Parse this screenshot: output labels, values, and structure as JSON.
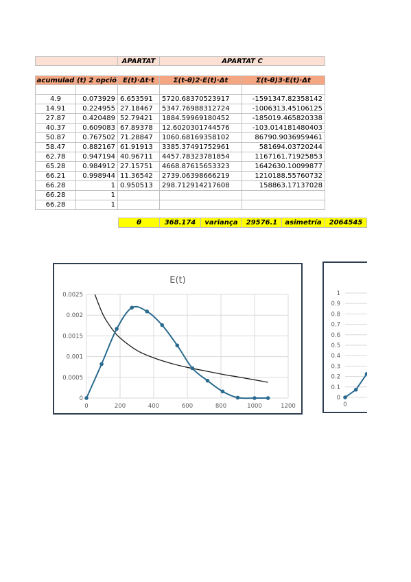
{
  "top_header": {
    "apartat_b": "APARTAT",
    "apartat_c": "APARTAT C"
  },
  "col_headers": [
    "acumulad",
    "(t) 2 opció",
    "E(t)·Δt·t",
    "Σ(t-θ)2·E(t)·Δt",
    "Σ(t-θ)3·E(t)·Δt"
  ],
  "rows": [
    [
      "",
      "",
      "",
      "",
      ""
    ],
    [
      "4.9",
      "0.073929",
      "6.653591",
      "5720.68370523917",
      "-1591347.82358142"
    ],
    [
      "14.91",
      "0.224955",
      "27.18467",
      "5347.76988312724",
      "-1006313.45106125"
    ],
    [
      "27.87",
      "0.420489",
      "52.79421",
      "1884.59969180452",
      "-185019.465820338"
    ],
    [
      "40.37",
      "0.609083",
      "67.89378",
      "12.6020301744576",
      "-103.014181480403"
    ],
    [
      "50.87",
      "0.767502",
      "71.28847",
      "1060.68169358102",
      "86790.9036959461"
    ],
    [
      "58.47",
      "0.882167",
      "61.91913",
      "3385.37491752961",
      "581694.03720244"
    ],
    [
      "62.78",
      "0.947194",
      "40.96711",
      "4457.78323781854",
      "1167161.71925853"
    ],
    [
      "65.28",
      "0.984912",
      "27.15751",
      "4668.87615653323",
      "1642630.10099877"
    ],
    [
      "66.21",
      "0.998944",
      "11.36542",
      "2739.06398666219",
      "1210188.55760732"
    ],
    [
      "66.28",
      "1",
      "0.950513",
      "298.712914217608",
      "158863.17137028"
    ],
    [
      "66.28",
      "1",
      "",
      "",
      ""
    ],
    [
      "66.28",
      "1",
      "",
      "",
      ""
    ]
  ],
  "summary": {
    "theta_label": "θ",
    "theta_value": "368.174",
    "variance_label": "variança",
    "variance_value": "29576.1",
    "skew_label": "asimetría",
    "skew_value": "2064545"
  },
  "colors": {
    "peach": "#fbe0d3",
    "orange": "#f4a582",
    "yellow": "#ffff00",
    "series": "#2a6a8f",
    "curve": "#1a1a1a"
  },
  "chart_data": [
    {
      "type": "line",
      "title": "E(t)",
      "xlim": [
        0,
        1200
      ],
      "ylim": [
        0,
        0.0025
      ],
      "x_ticks": [
        "0",
        "200",
        "400",
        "600",
        "800",
        "1000",
        "1200"
      ],
      "y_ticks": [
        "0",
        "0.0005",
        "0.001",
        "0.0015",
        "0.002",
        "0.0025"
      ],
      "grid": true,
      "series": [
        {
          "points": [
            [
              0,
              0
            ],
            [
              90,
              0.00082
            ],
            [
              180,
              0.00167
            ],
            [
              270,
              0.00218
            ],
            [
              360,
              0.00209
            ],
            [
              450,
              0.00176
            ],
            [
              540,
              0.00127
            ],
            [
              630,
              0.00072
            ],
            [
              720,
              0.00042
            ],
            [
              810,
              0.00016
            ],
            [
              900,
              1e-05
            ],
            [
              1000,
              0
            ],
            [
              1080,
              0
            ]
          ]
        },
        {
          "points": [
            [
              50,
              0.0025
            ],
            [
              100,
              0.002
            ],
            [
              150,
              0.00168
            ],
            [
              200,
              0.00145
            ],
            [
              300,
              0.00115
            ],
            [
              400,
              0.00097
            ],
            [
              500,
              0.00084
            ],
            [
              600,
              0.00074
            ],
            [
              700,
              0.00066
            ],
            [
              800,
              0.00058
            ],
            [
              900,
              0.00051
            ],
            [
              1000,
              0.00044
            ],
            [
              1080,
              0.00038
            ]
          ]
        }
      ]
    },
    {
      "type": "line",
      "y_ticks": [
        "0",
        "0.1",
        "0.2",
        "0.3",
        "0.4",
        "0.5",
        "0.6",
        "0.7",
        "0.8",
        "0.9",
        "1"
      ],
      "x_ticks": [
        "0"
      ],
      "ylim": [
        0,
        1
      ],
      "series": [
        {
          "points": [
            [
              0,
              0.0
            ],
            [
              90,
              0.074
            ],
            [
              180,
              0.225
            ]
          ]
        }
      ]
    }
  ]
}
